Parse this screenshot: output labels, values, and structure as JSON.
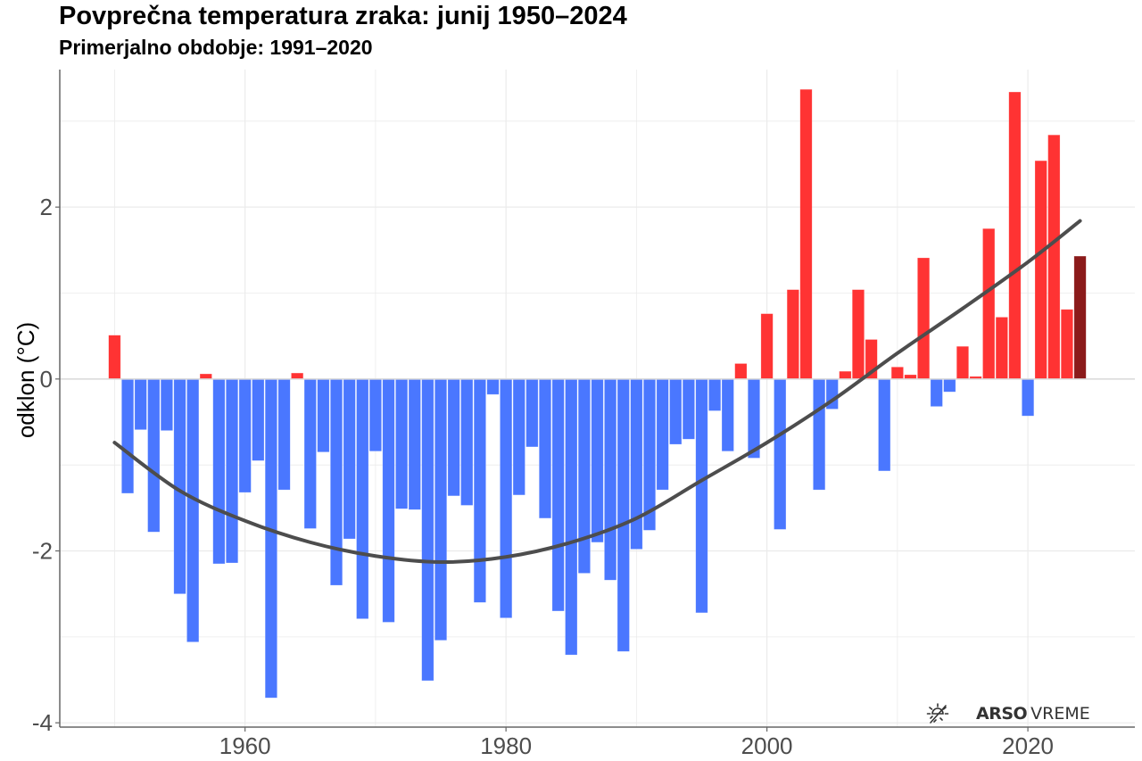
{
  "chart_data": {
    "type": "bar",
    "title": "Povprečna temperatura zraka: junij 1950–2024",
    "subtitle": "Primerjalno obdobje: 1991–2020",
    "xlabel": "",
    "ylabel": "odklon (°C)",
    "xlim": [
      1945.8,
      2028.2
    ],
    "ylim": [
      -4.05,
      3.6
    ],
    "x_ticks": [
      1960,
      1980,
      2000,
      2020
    ],
    "x_tick_labels": [
      "1960",
      "1980",
      "2000",
      "2020"
    ],
    "y_ticks": [
      -4,
      -2,
      0,
      2
    ],
    "y_tick_labels": [
      "-4",
      "-2",
      "0",
      "2"
    ],
    "grid": true,
    "colors": {
      "positive": "#ff3333",
      "negative": "#4a77ff",
      "latest": "#8b1a1a",
      "trend": "#4d4d4d",
      "grid": "#ebebeb",
      "axis": "#666666"
    },
    "x": [
      1950,
      1951,
      1952,
      1953,
      1954,
      1955,
      1956,
      1957,
      1958,
      1959,
      1960,
      1961,
      1962,
      1963,
      1964,
      1965,
      1966,
      1967,
      1968,
      1969,
      1970,
      1971,
      1972,
      1973,
      1974,
      1975,
      1976,
      1977,
      1978,
      1979,
      1980,
      1981,
      1982,
      1983,
      1984,
      1985,
      1986,
      1987,
      1988,
      1989,
      1990,
      1991,
      1992,
      1993,
      1994,
      1995,
      1996,
      1997,
      1998,
      1999,
      2000,
      2001,
      2002,
      2003,
      2004,
      2005,
      2006,
      2007,
      2008,
      2009,
      2010,
      2011,
      2012,
      2013,
      2014,
      2015,
      2016,
      2017,
      2018,
      2019,
      2020,
      2021,
      2022,
      2023,
      2024
    ],
    "values": [
      0.51,
      -1.33,
      -0.59,
      -1.78,
      -0.6,
      -2.5,
      -3.06,
      0.06,
      -2.15,
      -2.14,
      -1.32,
      -0.95,
      -3.71,
      -1.29,
      0.07,
      -1.74,
      -0.85,
      -2.4,
      -1.86,
      -2.79,
      -0.84,
      -2.83,
      -1.51,
      -1.52,
      -3.51,
      -3.04,
      -1.36,
      -1.47,
      -2.6,
      -0.18,
      -2.78,
      -1.35,
      -0.79,
      -1.62,
      -2.7,
      -3.21,
      -2.26,
      -1.9,
      -2.34,
      -3.17,
      -1.98,
      -1.76,
      -1.29,
      -0.76,
      -0.7,
      -2.72,
      -0.37,
      -0.84,
      0.18,
      -0.92,
      0.76,
      -1.75,
      1.04,
      3.37,
      -1.29,
      -0.35,
      0.09,
      1.04,
      0.46,
      -1.07,
      0.14,
      0.05,
      1.41,
      -0.32,
      -0.15,
      0.38,
      0.03,
      1.75,
      0.72,
      3.34,
      -0.43,
      2.54,
      2.84,
      0.81,
      1.43
    ],
    "highlight_year": 2024,
    "trend": {
      "name": "smoothed trend",
      "x": [
        1950,
        1955,
        1960,
        1965,
        1970,
        1975,
        1980,
        1985,
        1990,
        1995,
        2000,
        2005,
        2010,
        2015,
        2020,
        2024
      ],
      "values": [
        -0.74,
        -1.3,
        -1.65,
        -1.9,
        -2.06,
        -2.13,
        -2.07,
        -1.9,
        -1.62,
        -1.18,
        -0.74,
        -0.25,
        0.3,
        0.82,
        1.36,
        1.84
      ]
    }
  },
  "logo": {
    "icon": "sun-icon",
    "bold": "ARSO",
    "light": "VREME"
  }
}
